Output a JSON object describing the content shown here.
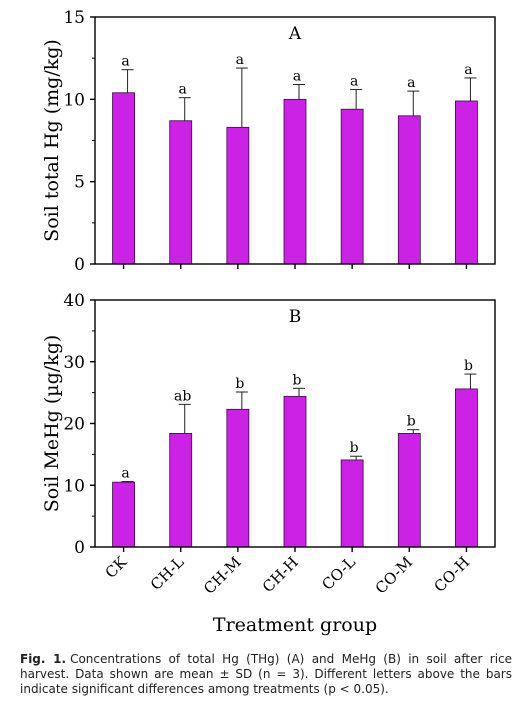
{
  "chart_data": [
    {
      "type": "bar",
      "title": "A",
      "ylabel": "Soil total Hg (mg/kg)",
      "ylim": [
        0,
        15
      ],
      "yticks": [
        0,
        5,
        10,
        15
      ],
      "categories": [
        "CK",
        "CH-L",
        "CH-M",
        "CH-H",
        "CO-L",
        "CO-M",
        "CO-H"
      ],
      "values": [
        10.4,
        8.7,
        8.3,
        10.0,
        9.4,
        9.0,
        9.9
      ],
      "errors": [
        1.4,
        1.4,
        3.6,
        0.9,
        1.2,
        1.5,
        1.4
      ],
      "significance_letters": [
        "a",
        "a",
        "a",
        "a",
        "a",
        "a",
        "a"
      ],
      "bar_color": "#cc22e6",
      "grid": false
    },
    {
      "type": "bar",
      "title": "B",
      "ylabel": "Soil MeHg (µg/kg)",
      "xlabel": "Treatment group",
      "ylim": [
        0,
        40
      ],
      "yticks": [
        0,
        10,
        20,
        30,
        40
      ],
      "categories": [
        "CK",
        "CH-L",
        "CH-M",
        "CH-H",
        "CO-L",
        "CO-M",
        "CO-H"
      ],
      "values": [
        10.5,
        18.4,
        22.3,
        24.4,
        14.1,
        18.4,
        25.6
      ],
      "errors": [
        0.1,
        4.7,
        2.8,
        1.3,
        0.6,
        0.6,
        2.4
      ],
      "significance_letters": [
        "a",
        "ab",
        "b",
        "b",
        "b",
        "b",
        "b"
      ],
      "bar_color": "#cc22e6",
      "grid": false
    }
  ],
  "caption": {
    "label": "Fig. 1.",
    "text": "Concentrations of total Hg (THg) (A) and MeHg (B) in soil after rice harvest. Data shown are mean ± SD (n = 3). Different letters above the bars indicate significant differences among treatments (p < 0.05)."
  }
}
